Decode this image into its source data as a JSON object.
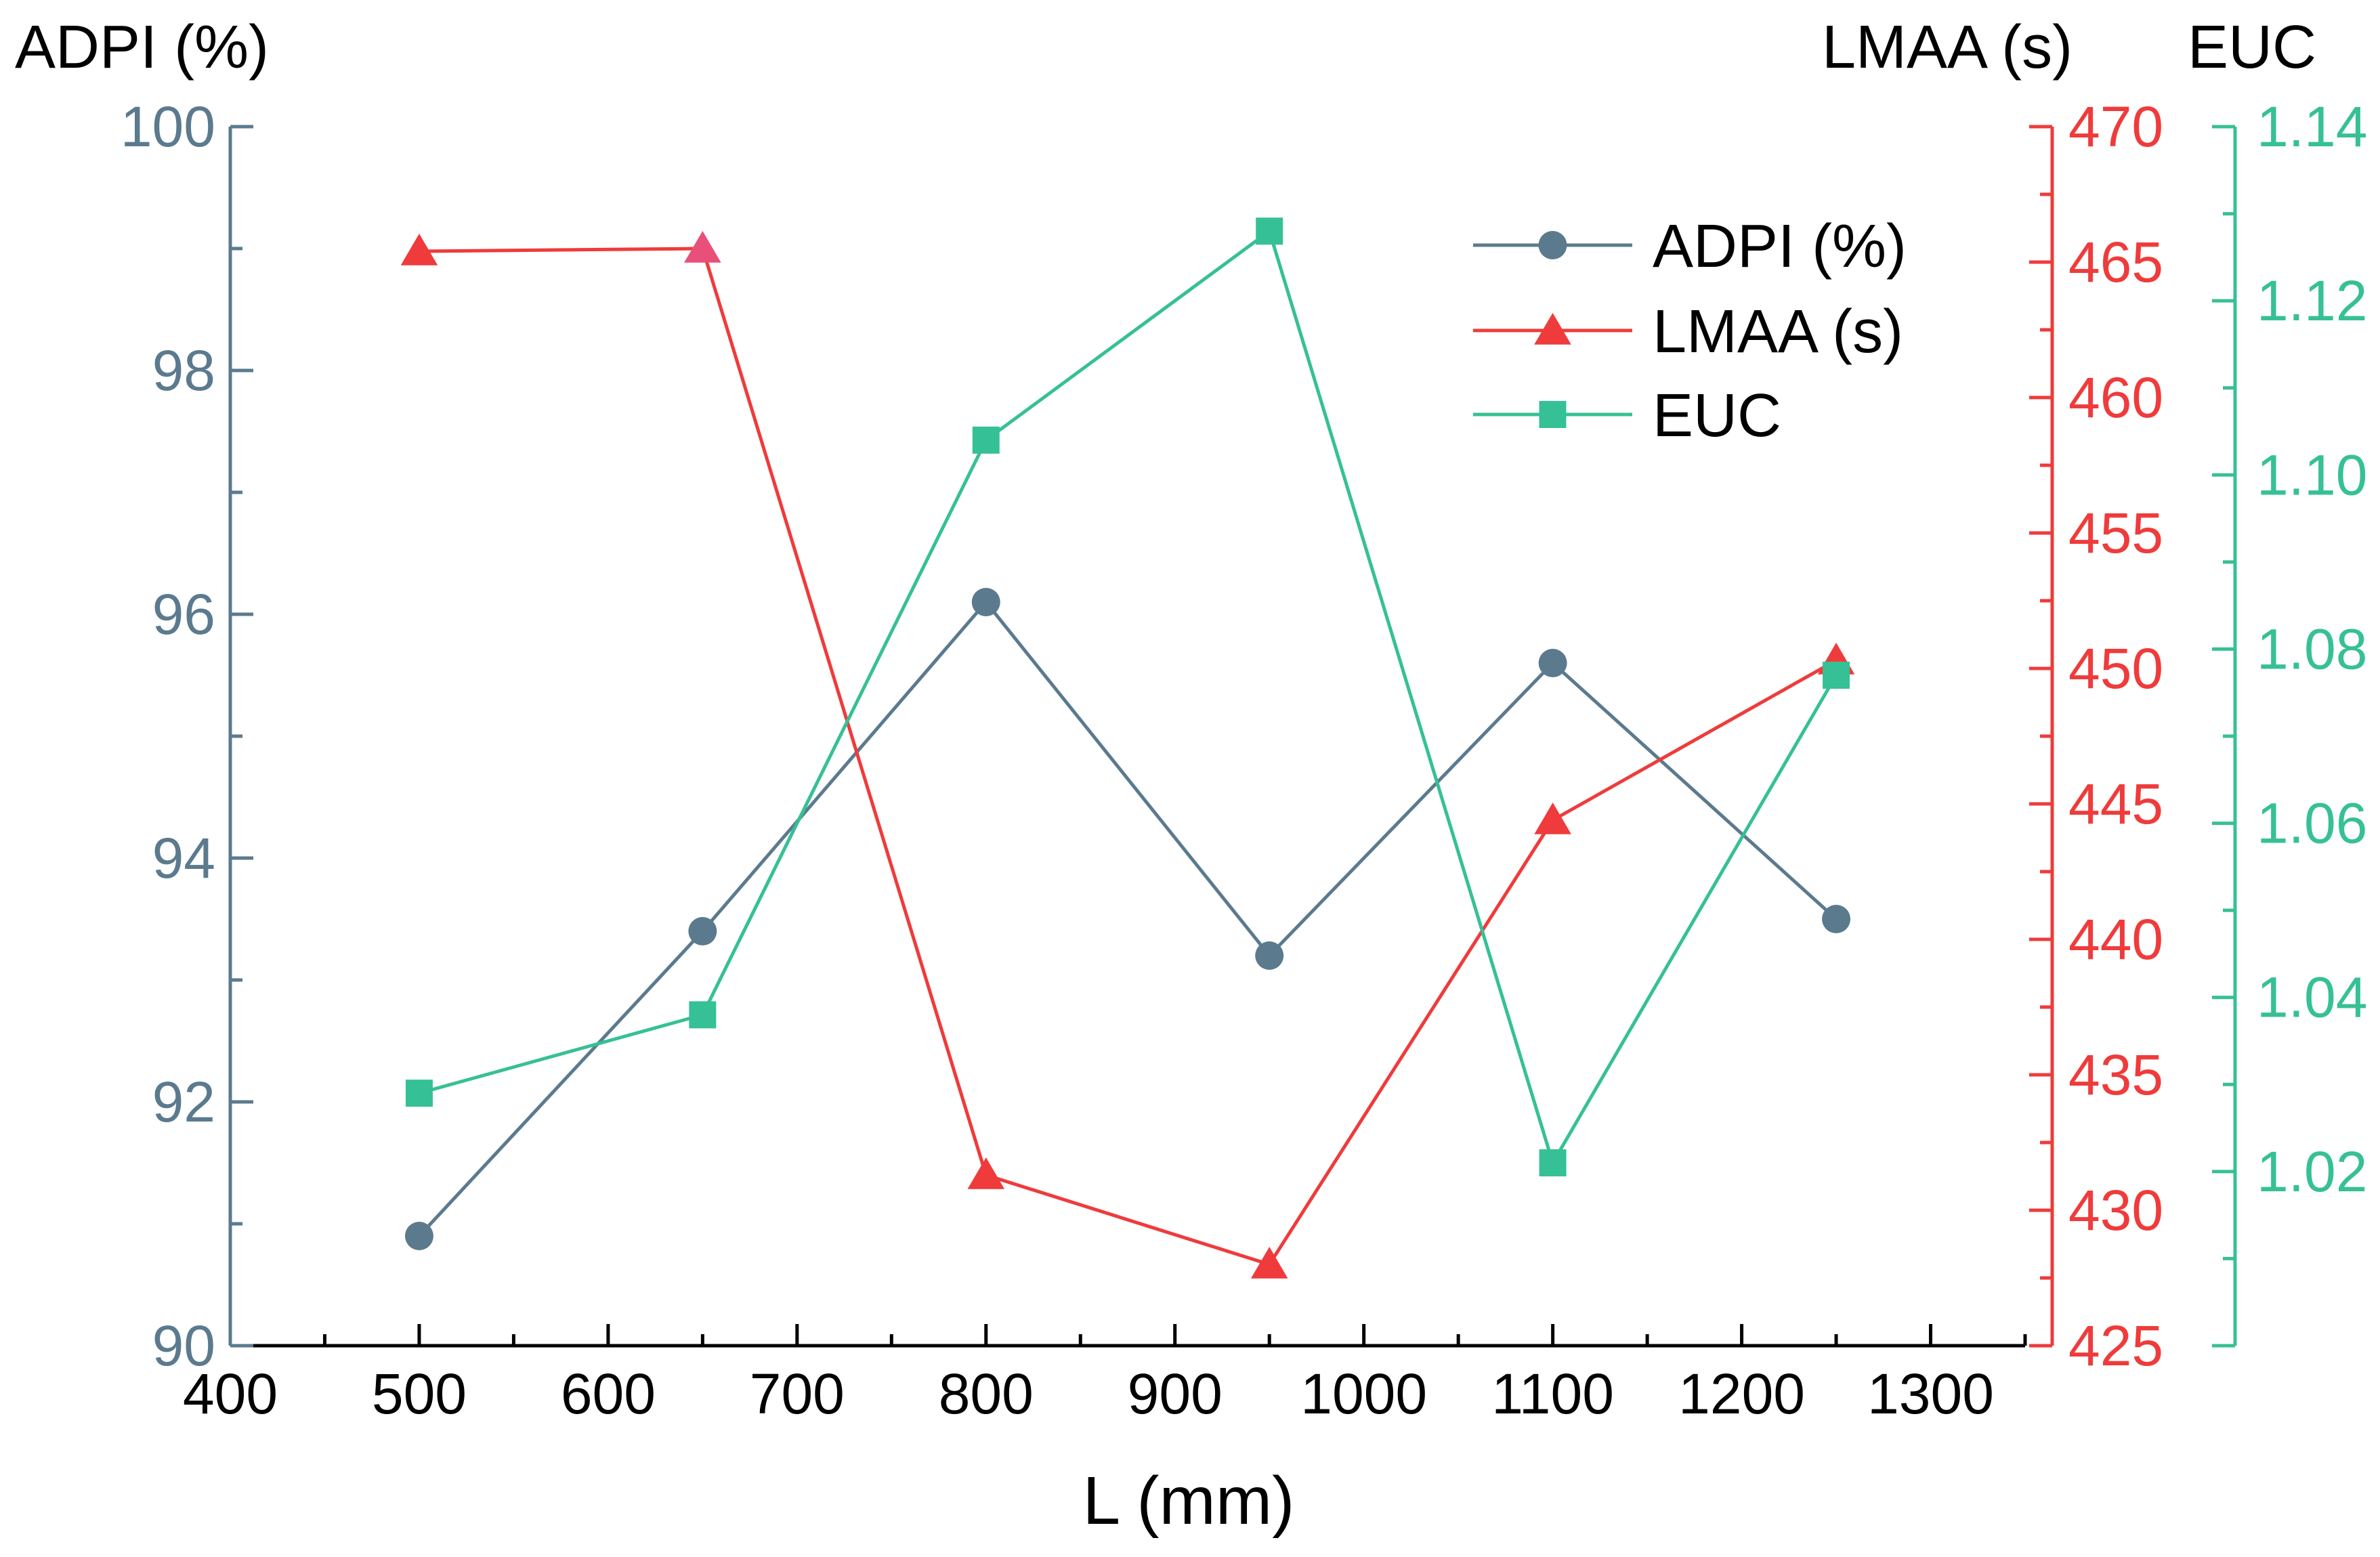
{
  "colors": {
    "adpi": "#5b7a8e",
    "lmaa": "#ef3b3b",
    "euc": "#36c095",
    "text": "#000000",
    "lmaa_marker_alt": "#e8507a"
  },
  "chart_data": {
    "type": "line",
    "title": "",
    "xlabel": "L (mm)",
    "x": [
      500,
      650,
      800,
      950,
      1100,
      1250
    ],
    "xlim": [
      400,
      1350
    ],
    "xticks": [
      "400",
      "500",
      "600",
      "700",
      "800",
      "900",
      "1000",
      "1100",
      "1200",
      "1300"
    ],
    "axes": {
      "adpi": {
        "label": "ADPI (%)",
        "ylim": [
          90,
          100
        ],
        "ticks": [
          "90",
          "92",
          "94",
          "96",
          "98",
          "100"
        ]
      },
      "lmaa": {
        "label": "LMAA (s)",
        "ylim": [
          425,
          470
        ],
        "ticks": [
          "425",
          "430",
          "435",
          "440",
          "445",
          "450",
          "455",
          "460",
          "465",
          "470"
        ]
      },
      "euc": {
        "label": "EUC",
        "ylim": [
          1.0,
          1.14
        ],
        "ticks": [
          "1.02",
          "1.04",
          "1.06",
          "1.08",
          "1.10",
          "1.12",
          "1.14"
        ]
      }
    },
    "series": [
      {
        "name": "ADPI (%)",
        "axis": "adpi",
        "marker": "circle",
        "values": [
          90.9,
          93.4,
          96.1,
          93.2,
          95.6,
          93.5
        ]
      },
      {
        "name": "LMAA (s)",
        "axis": "lmaa",
        "marker": "triangle",
        "values": [
          465.4,
          465.5,
          431.3,
          428.0,
          444.4,
          450.3
        ]
      },
      {
        "name": "EUC",
        "axis": "euc",
        "marker": "square",
        "values": [
          1.029,
          1.038,
          1.104,
          1.128,
          1.021,
          1.077
        ]
      }
    ],
    "legend_position": "top-right"
  }
}
